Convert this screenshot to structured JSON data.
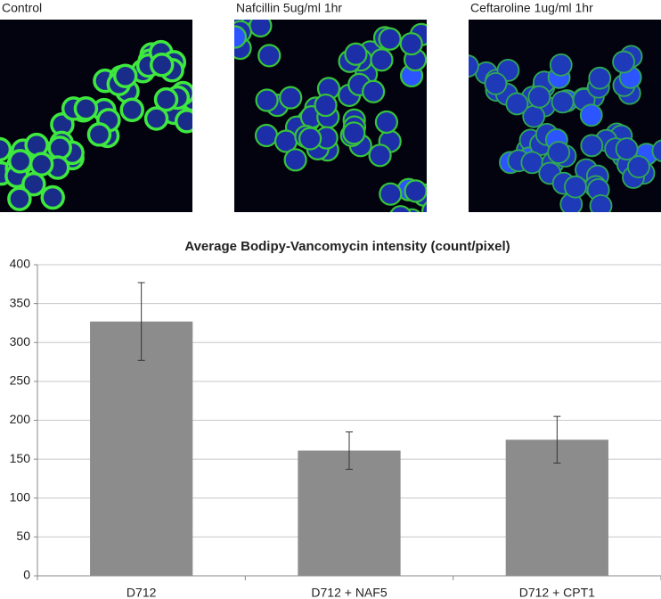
{
  "images": [
    {
      "label": "Control"
    },
    {
      "label": "Nafcillin 5ug/ml 1hr"
    },
    {
      "label": "Ceftaroline 1ug/ml 1hr"
    }
  ],
  "chart_data": {
    "type": "bar",
    "title": "Average Bodipy-Vancomycin intensity (count/pixel)",
    "categories": [
      "D712",
      "D712 + NAF5",
      "D712 + CPT1"
    ],
    "values": [
      327,
      161,
      175
    ],
    "errors": [
      50,
      24,
      30
    ],
    "color": "#8c8c8c",
    "ylim": [
      0,
      400
    ],
    "yticks": [
      0,
      50,
      100,
      150,
      200,
      250,
      300,
      350,
      400
    ],
    "grid": true
  }
}
